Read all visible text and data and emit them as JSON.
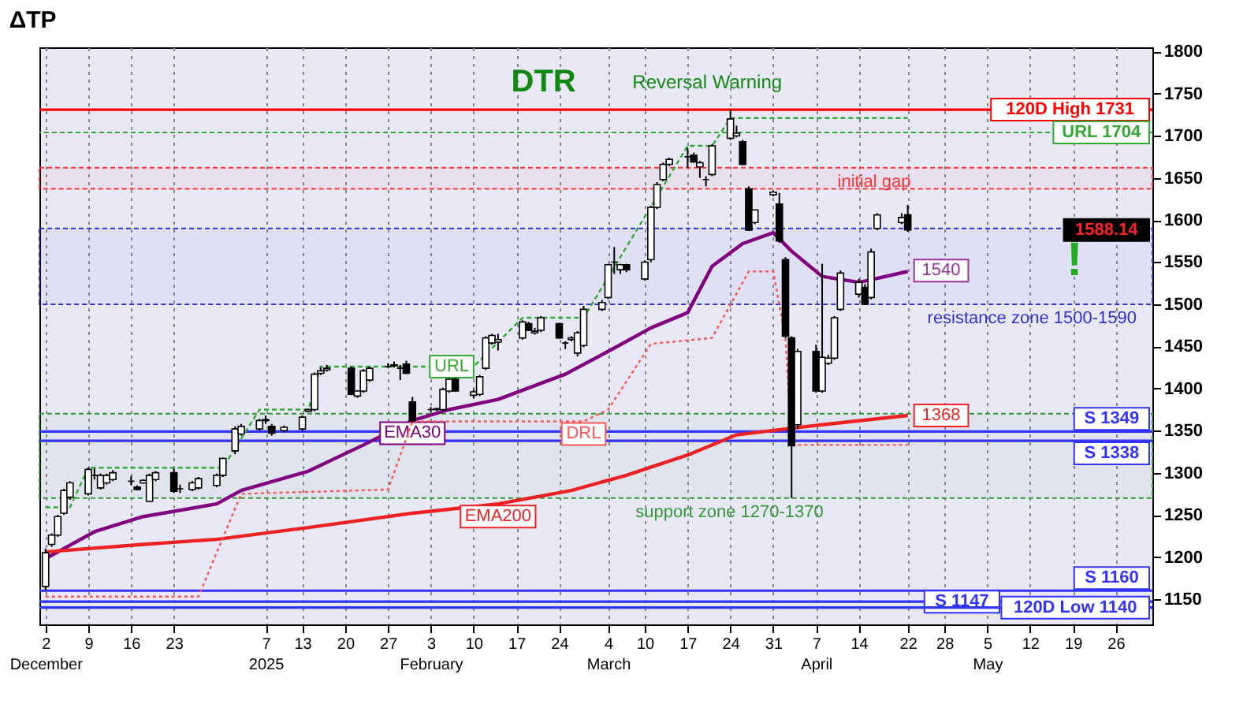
{
  "chart_data": {
    "type": "candlestick",
    "title": "ΔTP",
    "x": [
      "2024-12-02",
      "2024-12-03",
      "2024-12-04",
      "2024-12-05",
      "2024-12-06",
      "2024-12-09",
      "2024-12-10",
      "2024-12-11",
      "2024-12-12",
      "2024-12-13",
      "2024-12-16",
      "2024-12-17",
      "2024-12-18",
      "2024-12-19",
      "2024-12-20",
      "2024-12-23",
      "2024-12-24",
      "2024-12-26",
      "2024-12-27",
      "2024-12-30",
      "2024-12-31",
      "2025-01-02",
      "2025-01-03",
      "2025-01-06",
      "2025-01-07",
      "2025-01-08",
      "2025-01-10",
      "2025-01-13",
      "2025-01-14",
      "2025-01-15",
      "2025-01-16",
      "2025-01-17",
      "2025-01-21",
      "2025-01-22",
      "2025-01-23",
      "2025-01-24",
      "2025-01-27",
      "2025-01-28",
      "2025-01-29",
      "2025-01-30",
      "2025-01-31",
      "2025-02-03",
      "2025-02-04",
      "2025-02-05",
      "2025-02-06",
      "2025-02-07",
      "2025-02-10",
      "2025-02-11",
      "2025-02-12",
      "2025-02-13",
      "2025-02-14",
      "2025-02-18",
      "2025-02-19",
      "2025-02-20",
      "2025-02-21",
      "2025-02-24",
      "2025-02-25",
      "2025-02-26",
      "2025-02-27",
      "2025-02-28",
      "2025-03-03",
      "2025-03-04",
      "2025-03-05",
      "2025-03-06",
      "2025-03-07",
      "2025-03-10",
      "2025-03-11",
      "2025-03-12",
      "2025-03-13",
      "2025-03-14",
      "2025-03-17",
      "2025-03-18",
      "2025-03-19",
      "2025-03-20",
      "2025-03-21",
      "2025-03-24",
      "2025-03-25",
      "2025-03-26",
      "2025-03-27",
      "2025-03-28",
      "2025-03-31",
      "2025-04-01",
      "2025-04-02",
      "2025-04-03",
      "2025-04-04",
      "2025-04-07",
      "2025-04-08",
      "2025-04-09",
      "2025-04-10",
      "2025-04-11",
      "2025-04-14",
      "2025-04-15",
      "2025-04-16",
      "2025-04-17",
      "2025-04-21",
      "2025-04-22"
    ],
    "ohlc": [
      [
        1165,
        1210,
        1160,
        1205
      ],
      [
        1215,
        1228,
        1212,
        1226
      ],
      [
        1226,
        1250,
        1224,
        1248
      ],
      [
        1252,
        1281,
        1250,
        1279
      ],
      [
        1271,
        1290,
        1268,
        1288
      ],
      [
        1275,
        1306,
        1273,
        1304
      ],
      [
        1297,
        1305,
        1292,
        1297
      ],
      [
        1282,
        1299,
        1280,
        1297
      ],
      [
        1288,
        1299,
        1286,
        1297
      ],
      [
        1292,
        1303,
        1290,
        1300
      ],
      [
        1290,
        1296,
        1285,
        1290
      ],
      [
        1283,
        1285,
        1279,
        1280
      ],
      [
        1288,
        1292,
        1287,
        1291
      ],
      [
        1266,
        1299,
        1265,
        1297
      ],
      [
        1292,
        1302,
        1290,
        1300
      ],
      [
        1300,
        1305,
        1276,
        1278
      ],
      [
        1281,
        1286,
        1276,
        1281
      ],
      [
        1280,
        1290,
        1278,
        1288
      ],
      [
        1282,
        1295,
        1280,
        1293
      ],
      [
        1285,
        1299,
        1283,
        1297
      ],
      [
        1297,
        1318,
        1295,
        1317
      ],
      [
        1326,
        1355,
        1322,
        1352
      ],
      [
        1346,
        1358,
        1344,
        1355
      ],
      [
        1352,
        1364,
        1350,
        1362
      ],
      [
        1362,
        1368,
        1358,
        1363
      ],
      [
        1355,
        1358,
        1344,
        1347
      ],
      [
        1350,
        1356,
        1348,
        1354
      ],
      [
        1352,
        1368,
        1350,
        1366
      ],
      [
        1373,
        1376,
        1372,
        1375
      ],
      [
        1375,
        1419,
        1373,
        1417
      ],
      [
        1418,
        1425,
        1416,
        1421
      ],
      [
        1422,
        1428,
        1420,
        1424
      ],
      [
        1424,
        1426,
        1392,
        1393
      ],
      [
        1391,
        1398,
        1389,
        1397
      ],
      [
        1397,
        1423,
        1395,
        1421
      ],
      [
        1410,
        1426,
        1408,
        1424
      ],
      [
        1426,
        1430,
        1424,
        1426
      ],
      [
        1427,
        1432,
        1425,
        1428
      ],
      [
        1424,
        1428,
        1410,
        1424
      ],
      [
        1429,
        1433,
        1417,
        1418
      ],
      [
        1384,
        1390,
        1360,
        1362
      ],
      [
        1375,
        1378,
        1372,
        1375
      ],
      [
        1375,
        1377,
        1373,
        1376
      ],
      [
        1375,
        1401,
        1373,
        1399
      ],
      [
        1397,
        1412,
        1395,
        1411
      ],
      [
        1411,
        1413,
        1396,
        1397
      ],
      [
        1392,
        1399,
        1388,
        1396
      ],
      [
        1393,
        1416,
        1391,
        1414
      ],
      [
        1424,
        1462,
        1422,
        1460
      ],
      [
        1454,
        1465,
        1452,
        1463
      ],
      [
        1455,
        1465,
        1445,
        1458
      ],
      [
        1460,
        1481,
        1458,
        1479
      ],
      [
        1477,
        1479,
        1468,
        1469
      ],
      [
        1466,
        1472,
        1464,
        1468
      ],
      [
        1469,
        1486,
        1467,
        1484
      ],
      [
        1477,
        1478,
        1459,
        1460
      ],
      [
        1454,
        1456,
        1447,
        1454
      ],
      [
        1458,
        1462,
        1456,
        1460
      ],
      [
        1442,
        1468,
        1438,
        1466
      ],
      [
        1451,
        1498,
        1449,
        1494
      ],
      [
        1494,
        1505,
        1492,
        1502
      ],
      [
        1508,
        1548,
        1506,
        1547
      ],
      [
        1550,
        1568,
        1536,
        1550
      ],
      [
        1541,
        1548,
        1536,
        1547
      ],
      [
        1547,
        1548,
        1538,
        1541
      ],
      [
        1530,
        1552,
        1528,
        1550
      ],
      [
        1553,
        1617,
        1550,
        1615
      ],
      [
        1615,
        1645,
        1613,
        1642
      ],
      [
        1648,
        1668,
        1646,
        1666
      ],
      [
        1666,
        1674,
        1664,
        1672
      ],
      [
        1675,
        1686,
        1662,
        1675
      ],
      [
        1677,
        1680,
        1668,
        1669
      ],
      [
        1663,
        1670,
        1650,
        1668
      ],
      [
        1648,
        1652,
        1640,
        1648
      ],
      [
        1654,
        1690,
        1652,
        1688
      ],
      [
        1697,
        1731,
        1695,
        1720
      ],
      [
        1700,
        1712,
        1698,
        1703
      ],
      [
        1693,
        1695,
        1665,
        1666
      ],
      [
        1637,
        1640,
        1587,
        1588
      ],
      [
        1597,
        1612,
        1595,
        1612
      ],
      [
        1630,
        1635,
        1628,
        1633
      ],
      [
        1619,
        1632,
        1573,
        1575
      ],
      [
        1553,
        1556,
        1460,
        1462
      ],
      [
        1460,
        1462,
        1270,
        1332
      ],
      [
        1357,
        1447,
        1352,
        1444
      ],
      [
        1444,
        1452,
        1395,
        1397
      ],
      [
        1397,
        1548,
        1395,
        1437
      ],
      [
        1430,
        1440,
        1428,
        1436
      ],
      [
        1436,
        1486,
        1434,
        1484
      ],
      [
        1494,
        1540,
        1492,
        1537
      ],
      [
        1512,
        1530,
        1508,
        1526
      ],
      [
        1520,
        1524,
        1500,
        1500
      ],
      [
        1508,
        1566,
        1506,
        1562
      ],
      [
        1590,
        1608,
        1588,
        1606
      ],
      [
        1597,
        1608,
        1595,
        1603
      ],
      [
        1606,
        1618,
        1586,
        1588.14
      ]
    ],
    "series": [
      {
        "name": "EMA30",
        "type": "line",
        "color": "#800080",
        "line_style": "solid",
        "x": [
          "2024-12-02",
          "2024-12-10",
          "2024-12-18",
          "2024-12-30",
          "2025-01-03",
          "2025-01-14",
          "2025-01-23",
          "2025-01-31",
          "2025-02-06",
          "2025-02-14",
          "2025-02-25",
          "2025-03-05",
          "2025-03-11",
          "2025-03-17",
          "2025-03-21",
          "2025-03-26",
          "2025-03-31",
          "2025-04-03",
          "2025-04-08",
          "2025-04-14",
          "2025-04-16",
          "2025-04-22"
        ],
        "values": [
          1198,
          1230,
          1248,
          1263,
          1279,
          1302,
          1333,
          1362,
          1375,
          1387,
          1417,
          1448,
          1472,
          1490,
          1545,
          1572,
          1585,
          1563,
          1533,
          1526,
          1529,
          1539
        ]
      },
      {
        "name": "EMA200",
        "type": "line",
        "color": "#ee2222",
        "line_style": "solid",
        "x": [
          "2024-12-02",
          "2024-12-18",
          "2024-12-30",
          "2025-01-14",
          "2025-01-31",
          "2025-02-14",
          "2025-02-26",
          "2025-03-07",
          "2025-03-17",
          "2025-03-25",
          "2025-04-02",
          "2025-04-08",
          "2025-04-22"
        ],
        "values": [
          1206,
          1215,
          1221,
          1235,
          1252,
          1263,
          1279,
          1297,
          1321,
          1345,
          1352,
          1357,
          1368
        ]
      },
      {
        "name": "URL",
        "type": "line",
        "color": "#33aa33",
        "line_style": "dashed",
        "x": [
          "2024-12-02",
          "2024-12-06",
          "2024-12-09",
          "2024-12-31",
          "2025-01-06",
          "2025-01-14",
          "2025-01-16",
          "2025-01-30",
          "2025-02-10",
          "2025-02-18",
          "2025-02-28",
          "2025-03-17",
          "2025-03-21",
          "2025-03-24",
          "2025-04-22"
        ],
        "values": [
          1259,
          1259,
          1306,
          1306,
          1375,
          1375,
          1426,
          1426,
          1426,
          1484,
          1484,
          1688,
          1688,
          1721,
          1721
        ]
      },
      {
        "name": "DRL",
        "type": "line",
        "color": "#ff5555",
        "line_style": "dotted",
        "x": [
          "2024-12-02",
          "2024-12-27",
          "2025-01-03",
          "2025-01-27",
          "2025-01-31",
          "2025-02-28",
          "2025-03-04",
          "2025-03-11",
          "2025-03-21",
          "2025-03-27",
          "2025-03-31",
          "2025-04-02",
          "2025-04-03",
          "2025-04-22"
        ],
        "values": [
          1153,
          1153,
          1275,
          1280,
          1361,
          1361,
          1375,
          1453,
          1460,
          1539,
          1539,
          1460,
          1333,
          1333
        ]
      }
    ],
    "xlim": [
      "2024-12-01",
      "2025-06-01"
    ],
    "xticks": [
      {
        "value": "2024-12-02",
        "label": "2\nDecember"
      },
      {
        "value": "2024-12-09",
        "label": "9"
      },
      {
        "value": "2024-12-16",
        "label": "16"
      },
      {
        "value": "2024-12-23",
        "label": "23"
      },
      {
        "value": "2025-01-07",
        "label": "7\n2025"
      },
      {
        "value": "2025-01-13",
        "label": "13"
      },
      {
        "value": "2025-01-20",
        "label": "20"
      },
      {
        "value": "2025-01-27",
        "label": "27"
      },
      {
        "value": "2025-02-03",
        "label": "3\nFebruary"
      },
      {
        "value": "2025-02-10",
        "label": "10"
      },
      {
        "value": "2025-02-17",
        "label": "17"
      },
      {
        "value": "2025-02-24",
        "label": "24"
      },
      {
        "value": "2025-03-04",
        "label": "4\nMarch"
      },
      {
        "value": "2025-03-10",
        "label": "10"
      },
      {
        "value": "2025-03-17",
        "label": "17"
      },
      {
        "value": "2025-03-24",
        "label": "24"
      },
      {
        "value": "2025-03-31",
        "label": "31"
      },
      {
        "value": "2025-04-07",
        "label": "7\nApril"
      },
      {
        "value": "2025-04-14",
        "label": "14"
      },
      {
        "value": "2025-04-22",
        "label": "22"
      },
      {
        "value": "2025-04-28",
        "label": "28"
      },
      {
        "value": "2025-05-05",
        "label": "5\nMay"
      },
      {
        "value": "2025-05-12",
        "label": "12"
      },
      {
        "value": "2025-05-19",
        "label": "19"
      },
      {
        "value": "2025-05-26",
        "label": "26"
      }
    ],
    "ylim": [
      1120,
      1805
    ],
    "yticks": [
      1150,
      1200,
      1250,
      1300,
      1350,
      1400,
      1450,
      1500,
      1550,
      1600,
      1650,
      1700,
      1750,
      1800
    ],
    "grid": "x",
    "ref_lines": [
      {
        "axis": "y",
        "value": 1731,
        "label": "120D High 1731",
        "color": "#ff0000",
        "line_style": "solid"
      },
      {
        "axis": "y",
        "value": 1704,
        "label": "URL 1704",
        "color": "#33aa33",
        "line_style": "dashed"
      },
      {
        "axis": "y",
        "value": 1349,
        "label": "S 1349",
        "color": "#3333ff",
        "line_style": "solid"
      },
      {
        "axis": "y",
        "value": 1338,
        "label": "S 1338",
        "color": "#3333ff",
        "line_style": "solid"
      },
      {
        "axis": "y",
        "value": 1160,
        "label": "S 1160",
        "color": "#3333ff",
        "line_style": "solid"
      },
      {
        "axis": "y",
        "value": 1147,
        "label": "S 1147",
        "color": "#3333ff",
        "line_style": "solid"
      },
      {
        "axis": "y",
        "value": 1140,
        "label": "120D Low 1140",
        "color": "#3333ff",
        "line_style": "solid"
      }
    ],
    "bands": [
      {
        "axis": "y",
        "from": 1637,
        "to": 1662,
        "label": "initial gap",
        "color": "#ff3333"
      },
      {
        "axis": "y",
        "from": 1500,
        "to": 1590,
        "label": "resistance zone 1500-1590",
        "color": "#3333cc"
      },
      {
        "axis": "y",
        "from": 1270,
        "to": 1370,
        "label": "support zone 1270-1370",
        "color": "#339933"
      }
    ],
    "annotations": [
      "DTR",
      "Reversal Warning",
      "!",
      {
        "text": "1540",
        "x": "2025-04-22",
        "y": 1540
      },
      {
        "text": "1368",
        "x": "2025-04-22",
        "y": 1368
      },
      {
        "text": "1588.14",
        "y": 1588.14
      }
    ]
  }
}
